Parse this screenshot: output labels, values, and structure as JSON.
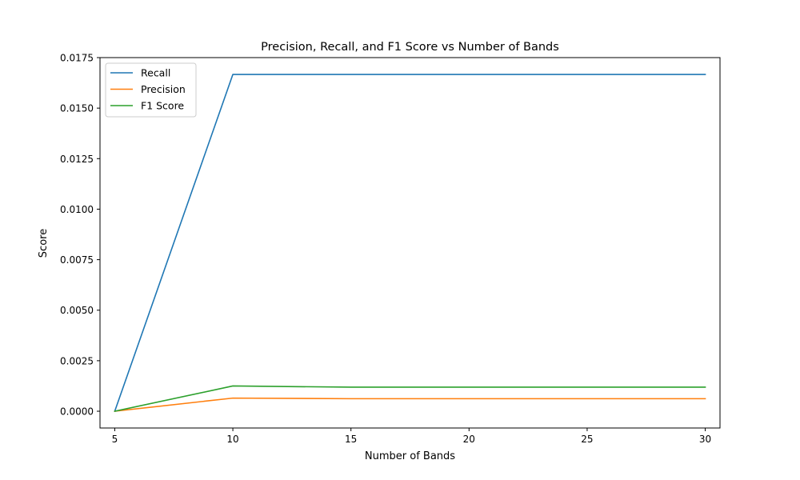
{
  "chart_data": {
    "type": "line",
    "title": "Precision, Recall, and F1 Score vs Number of Bands",
    "xlabel": "Number of Bands",
    "ylabel": "Score",
    "x": [
      5,
      10,
      15,
      20,
      25,
      30
    ],
    "xlim": [
      4.375,
      30.625
    ],
    "ylim": [
      -0.00083,
      0.0175
    ],
    "xticks": [
      5,
      10,
      15,
      20,
      25,
      30
    ],
    "xtick_labels": [
      "5",
      "10",
      "15",
      "20",
      "25",
      "30"
    ],
    "yticks": [
      0.0,
      0.0025,
      0.005,
      0.0075,
      0.01,
      0.0125,
      0.015,
      0.0175
    ],
    "ytick_labels": [
      "0.0000",
      "0.0025",
      "0.0050",
      "0.0075",
      "0.0100",
      "0.0125",
      "0.0150",
      "0.0175"
    ],
    "grid": false,
    "legend_position": "top-left",
    "series": [
      {
        "name": "Recall",
        "color": "#1f77b4",
        "values": [
          0.0,
          0.016667,
          0.016667,
          0.016667,
          0.016667,
          0.016667
        ]
      },
      {
        "name": "Precision",
        "color": "#ff7f0e",
        "values": [
          0.0,
          0.00065,
          0.00062,
          0.00062,
          0.00062,
          0.00062
        ]
      },
      {
        "name": "F1 Score",
        "color": "#2ca02c",
        "values": [
          0.0,
          0.00125,
          0.00119,
          0.00119,
          0.00119,
          0.00119
        ]
      }
    ]
  }
}
